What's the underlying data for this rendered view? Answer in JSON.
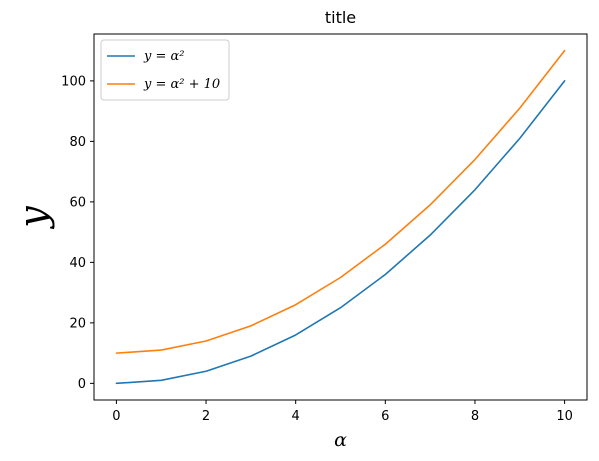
{
  "chart_data": {
    "type": "line",
    "title": "title",
    "xlabel": "α",
    "ylabel": "y",
    "xlim": [
      -0.5,
      10.5
    ],
    "ylim": [
      -5.5,
      115.5
    ],
    "xticks": [
      0,
      2,
      4,
      6,
      8,
      10
    ],
    "yticks": [
      0,
      20,
      40,
      60,
      80,
      100
    ],
    "grid": false,
    "legend_position": "top-left",
    "x": [
      0,
      1,
      2,
      3,
      4,
      5,
      6,
      7,
      8,
      9,
      10
    ],
    "series": [
      {
        "name": "y = α²",
        "color": "#1f77b4",
        "values": [
          0,
          1,
          4,
          9,
          16,
          25,
          36,
          49,
          64,
          81,
          100
        ]
      },
      {
        "name": "y = α² + 10",
        "color": "#ff7f0e",
        "values": [
          10,
          11,
          14,
          19,
          26,
          35,
          46,
          59,
          74,
          91,
          110
        ]
      }
    ]
  }
}
